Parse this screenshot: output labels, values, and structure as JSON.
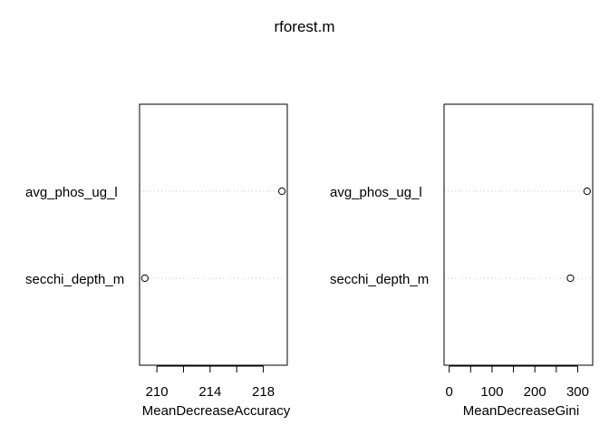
{
  "title": "rforest.m",
  "chart_data": [
    {
      "type": "scatter",
      "variant": "dotchart",
      "categories": [
        "avg_phos_ug_l",
        "secchi_depth_m"
      ],
      "values": [
        219.4,
        209.1
      ],
      "xlabel": "MeanDecreaseAccuracy",
      "xlim": [
        208.7,
        219.8
      ],
      "xticks": [
        210,
        212,
        214,
        216,
        218
      ],
      "xtick_labels": [
        "210",
        "",
        "214",
        "",
        "218"
      ],
      "marker": "open-circle",
      "guide_lines": "dotted"
    },
    {
      "type": "scatter",
      "variant": "dotchart",
      "categories": [
        "avg_phos_ug_l",
        "secchi_depth_m"
      ],
      "values": [
        322,
        283
      ],
      "xlabel": "MeanDecreaseGini",
      "xlim": [
        -12,
        335
      ],
      "xticks": [
        0,
        50,
        100,
        150,
        200,
        250,
        300
      ],
      "xtick_labels": [
        "0",
        "",
        "100",
        "",
        "200",
        "",
        "300"
      ],
      "marker": "open-circle",
      "guide_lines": "dotted"
    }
  ]
}
